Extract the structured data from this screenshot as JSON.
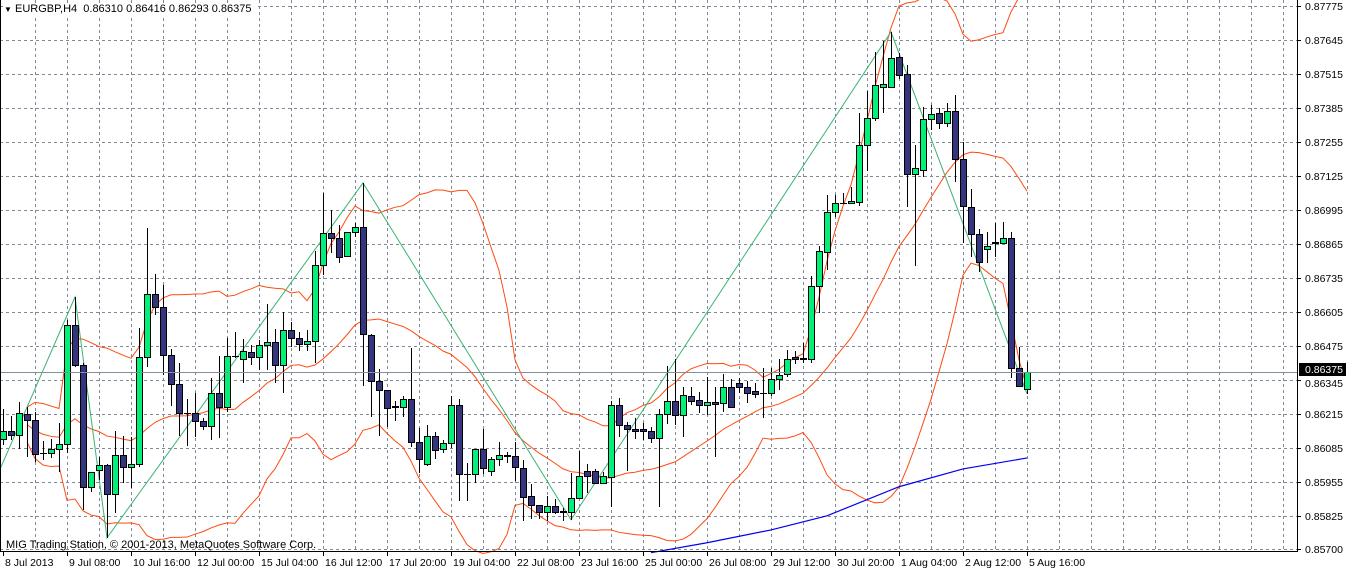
{
  "header": {
    "menu_icon": "triangle-down-icon",
    "symbol": "EURGBP,H4",
    "open": "0.86310",
    "high": "0.86416",
    "low": "0.86293",
    "close": "0.86375"
  },
  "watermark": "MIG Trading Station, © 2001-2013, MetaQuotes Software Corp.",
  "chart_data": {
    "type": "candlestick",
    "title": "EURGBP,H4",
    "ylim": [
      0.857,
      0.87775
    ],
    "grid": true,
    "current_price": "0.86375",
    "price_ticks": [
      "0.87775",
      "0.87645",
      "0.87515",
      "0.87385",
      "0.87255",
      "0.87125",
      "0.86995",
      "0.86865",
      "0.86735",
      "0.86605",
      "0.86475",
      "0.86345",
      "0.86215",
      "0.86085",
      "0.85955",
      "0.85825",
      "0.85700"
    ],
    "time_labels": [
      {
        "index": 0,
        "label": "8 Jul 2013"
      },
      {
        "index": 8,
        "label": "9 Jul 08:00"
      },
      {
        "index": 16,
        "label": "10 Jul 16:00"
      },
      {
        "index": 24,
        "label": "12 Jul 00:00"
      },
      {
        "index": 32,
        "label": "15 Jul 04:00"
      },
      {
        "index": 40,
        "label": "16 Jul 12:00"
      },
      {
        "index": 48,
        "label": "17 Jul 20:00"
      },
      {
        "index": 56,
        "label": "19 Jul 04:00"
      },
      {
        "index": 64,
        "label": "22 Jul 08:00"
      },
      {
        "index": 72,
        "label": "23 Jul 16:00"
      },
      {
        "index": 80,
        "label": "25 Jul 00:00"
      },
      {
        "index": 88,
        "label": "26 Jul 08:00"
      },
      {
        "index": 96,
        "label": "29 Jul 12:00"
      },
      {
        "index": 104,
        "label": "30 Jul 20:00"
      },
      {
        "index": 112,
        "label": "1 Aug 04:00"
      },
      {
        "index": 120,
        "label": "2 Aug 12:00"
      },
      {
        "index": 128,
        "label": "5 Aug 16:00"
      }
    ],
    "candles_format": [
      "open",
      "high",
      "low",
      "close"
    ],
    "candles": [
      [
        0.86121,
        0.86236,
        0.86098,
        0.86152
      ],
      [
        0.86152,
        0.86209,
        0.86117,
        0.86136
      ],
      [
        0.86136,
        0.86262,
        0.86083,
        0.8622
      ],
      [
        0.86217,
        0.86243,
        0.86052,
        0.86194
      ],
      [
        0.86194,
        0.86224,
        0.86033,
        0.86064
      ],
      [
        0.86068,
        0.86113,
        0.86041,
        0.86066
      ],
      [
        0.86068,
        0.86121,
        0.86048,
        0.86083
      ],
      [
        0.86083,
        0.86182,
        0.85995,
        0.86102
      ],
      [
        0.86102,
        0.86576,
        0.86068,
        0.86556
      ],
      [
        0.86556,
        0.86663,
        0.86396,
        0.86404
      ],
      [
        0.86404,
        0.86411,
        0.8585,
        0.85938
      ],
      [
        0.85938,
        0.85995,
        0.85919,
        0.85995
      ],
      [
        0.86003,
        0.86052,
        0.85964,
        0.86022
      ],
      [
        0.86022,
        0.86025,
        0.85743,
        0.85911
      ],
      [
        0.85911,
        0.86152,
        0.85838,
        0.8606
      ],
      [
        0.8606,
        0.86132,
        0.85953,
        0.86014
      ],
      [
        0.86014,
        0.86129,
        0.85934,
        0.86026
      ],
      [
        0.86026,
        0.86545,
        0.86014,
        0.86434
      ],
      [
        0.86434,
        0.86927,
        0.86396,
        0.86675
      ],
      [
        0.86675,
        0.86751,
        0.86595,
        0.86625
      ],
      [
        0.86625,
        0.86709,
        0.86365,
        0.86442
      ],
      [
        0.86442,
        0.86465,
        0.86247,
        0.86331
      ],
      [
        0.86331,
        0.86411,
        0.86132,
        0.8622
      ],
      [
        0.8622,
        0.86274,
        0.86094,
        0.86218
      ],
      [
        0.8622,
        0.86297,
        0.86129,
        0.8619
      ],
      [
        0.8619,
        0.86201,
        0.86155,
        0.86171
      ],
      [
        0.86171,
        0.86354,
        0.86117,
        0.86297
      ],
      [
        0.86297,
        0.86438,
        0.86125,
        0.86243
      ],
      [
        0.86243,
        0.86507,
        0.86224,
        0.86438
      ],
      [
        0.86438,
        0.8653,
        0.8643,
        0.86436
      ],
      [
        0.86427,
        0.86503,
        0.86335,
        0.86457
      ],
      [
        0.86453,
        0.8648,
        0.86404,
        0.86434
      ],
      [
        0.86434,
        0.86499,
        0.86385,
        0.8648
      ],
      [
        0.8648,
        0.86637,
        0.86385,
        0.86492
      ],
      [
        0.86492,
        0.86541,
        0.86335,
        0.86404
      ],
      [
        0.86404,
        0.86606,
        0.86297,
        0.86537
      ],
      [
        0.86537,
        0.86568,
        0.86472,
        0.86507
      ],
      [
        0.86507,
        0.8653,
        0.86457,
        0.86484
      ],
      [
        0.86484,
        0.86537,
        0.86457,
        0.86495
      ],
      [
        0.86495,
        0.86839,
        0.86411,
        0.86786
      ],
      [
        0.86786,
        0.87061,
        0.86747,
        0.86908
      ],
      [
        0.86908,
        0.86996,
        0.86832,
        0.86889
      ],
      [
        0.86889,
        0.86938,
        0.86793,
        0.86816
      ],
      [
        0.8682,
        0.86912,
        0.8682,
        0.86912
      ],
      [
        0.86912,
        0.86946,
        0.86893,
        0.86931
      ],
      [
        0.86931,
        0.87099,
        0.86323,
        0.86522
      ],
      [
        0.86518,
        0.86522,
        0.86205,
        0.86343
      ],
      [
        0.86343,
        0.86388,
        0.86132,
        0.86308
      ],
      [
        0.86308,
        0.86308,
        0.86167,
        0.86239
      ],
      [
        0.86243,
        0.86266,
        0.8619,
        0.86247
      ],
      [
        0.86243,
        0.86285,
        0.86205,
        0.86274
      ],
      [
        0.86274,
        0.86469,
        0.8609,
        0.8611
      ],
      [
        0.8611,
        0.86163,
        0.85991,
        0.86045
      ],
      [
        0.86026,
        0.86174,
        0.86018,
        0.86132
      ],
      [
        0.86132,
        0.86148,
        0.86045,
        0.86079
      ],
      [
        0.86083,
        0.86117,
        0.86068,
        0.86106
      ],
      [
        0.86106,
        0.86285,
        0.86087,
        0.86251
      ],
      [
        0.86251,
        0.86274,
        0.85884,
        0.85987
      ],
      [
        0.85987,
        0.86029,
        0.85884,
        0.85985
      ],
      [
        0.85987,
        0.86083,
        0.85953,
        0.86083
      ],
      [
        0.86083,
        0.86159,
        0.85987,
        0.8601
      ],
      [
        0.85999,
        0.86052,
        0.8598,
        0.86045
      ],
      [
        0.86045,
        0.8611,
        0.86018,
        0.8606
      ],
      [
        0.8606,
        0.86071,
        0.86029,
        0.86056
      ],
      [
        0.86056,
        0.8611,
        0.85961,
        0.86014
      ],
      [
        0.8601,
        0.86041,
        0.85808,
        0.85899
      ],
      [
        0.85903,
        0.85949,
        0.85815,
        0.85869
      ],
      [
        0.85869,
        0.85869,
        0.85815,
        0.85842
      ],
      [
        0.85842,
        0.85903,
        0.85808,
        0.85865
      ],
      [
        0.85865,
        0.85892,
        0.85835,
        0.85842
      ],
      [
        0.85842,
        0.85857,
        0.85808,
        0.85844
      ],
      [
        0.85842,
        0.85991,
        0.85812,
        0.85896
      ],
      [
        0.85896,
        0.86075,
        0.85896,
        0.8598
      ],
      [
        0.85999,
        0.86026,
        0.85915,
        0.8598
      ],
      [
        0.85999,
        0.86006,
        0.85953,
        0.85953
      ],
      [
        0.85953,
        0.85995,
        0.85953,
        0.8598
      ],
      [
        0.85976,
        0.86266,
        0.85861,
        0.86251
      ],
      [
        0.86251,
        0.86278,
        0.86129,
        0.86174
      ],
      [
        0.86174,
        0.86186,
        0.85999,
        0.86159
      ],
      [
        0.86159,
        0.86201,
        0.86121,
        0.86152
      ],
      [
        0.86159,
        0.86182,
        0.86117,
        0.86152
      ],
      [
        0.86152,
        0.86167,
        0.86106,
        0.86125
      ],
      [
        0.86125,
        0.86236,
        0.85861,
        0.86217
      ],
      [
        0.86217,
        0.864,
        0.86178,
        0.86266
      ],
      [
        0.86266,
        0.86427,
        0.86174,
        0.86213
      ],
      [
        0.86213,
        0.8632,
        0.86129,
        0.86289
      ],
      [
        0.86285,
        0.8632,
        0.86251,
        0.86266
      ],
      [
        0.8627,
        0.86301,
        0.8622,
        0.86251
      ],
      [
        0.86251,
        0.86358,
        0.86213,
        0.86262
      ],
      [
        0.86262,
        0.8632,
        0.86052,
        0.86255
      ],
      [
        0.86259,
        0.86369,
        0.86224,
        0.8632
      ],
      [
        0.8632,
        0.8635,
        0.86243,
        0.86243
      ],
      [
        0.86335,
        0.86354,
        0.86297,
        0.8632
      ],
      [
        0.8632,
        0.86343,
        0.86259,
        0.86297
      ],
      [
        0.86304,
        0.86335,
        0.86278,
        0.86293
      ],
      [
        0.86297,
        0.86392,
        0.86201,
        0.86295
      ],
      [
        0.86297,
        0.86392,
        0.86285,
        0.8635
      ],
      [
        0.8635,
        0.86427,
        0.86308,
        0.86365
      ],
      [
        0.86369,
        0.86461,
        0.86358,
        0.86427
      ],
      [
        0.86434,
        0.86457,
        0.86408,
        0.86427
      ],
      [
        0.86427,
        0.86488,
        0.86411,
        0.86429
      ],
      [
        0.86427,
        0.86744,
        0.86411,
        0.86705
      ],
      [
        0.86705,
        0.86858,
        0.86602,
        0.86839
      ],
      [
        0.86835,
        0.87053,
        0.86767,
        0.86988
      ],
      [
        0.86988,
        0.87053,
        0.86969,
        0.87023
      ],
      [
        0.87023,
        0.87061,
        0.87023,
        0.87021
      ],
      [
        0.87023,
        0.87084,
        0.87023,
        0.8703
      ],
      [
        0.87026,
        0.87366,
        0.87011,
        0.87244
      ],
      [
        0.87244,
        0.8745,
        0.87145,
        0.87347
      ],
      [
        0.87347,
        0.87599,
        0.87336,
        0.87473
      ],
      [
        0.87466,
        0.87641,
        0.87366,
        0.87477
      ],
      [
        0.87466,
        0.87676,
        0.87462,
        0.87576
      ],
      [
        0.8758,
        0.87596,
        0.87496,
        0.87511
      ],
      [
        0.87515,
        0.8755,
        0.87007,
        0.87133
      ],
      [
        0.87133,
        0.87244,
        0.86782,
        0.87156
      ],
      [
        0.87149,
        0.87389,
        0.87122,
        0.87343
      ],
      [
        0.87343,
        0.87397,
        0.87301,
        0.87363
      ],
      [
        0.87366,
        0.87385,
        0.87305,
        0.87328
      ],
      [
        0.87328,
        0.87405,
        0.87313,
        0.87374
      ],
      [
        0.87374,
        0.87435,
        0.87103,
        0.87191
      ],
      [
        0.87191,
        0.87256,
        0.8687,
        0.87011
      ],
      [
        0.87007,
        0.87076,
        0.86816,
        0.86904
      ],
      [
        0.86904,
        0.86923,
        0.86759,
        0.86797
      ],
      [
        0.86847,
        0.86912,
        0.86793,
        0.86858
      ],
      [
        0.8687,
        0.86946,
        0.86816,
        0.86872
      ],
      [
        0.8687,
        0.8695,
        0.86866,
        0.86889
      ],
      [
        0.86889,
        0.86912,
        0.86354,
        0.86392
      ],
      [
        0.86392,
        0.86472,
        0.8632,
        0.86323
      ],
      [
        0.8631,
        0.86416,
        0.86293,
        0.86375
      ]
    ],
    "indicators": {
      "moving_average_blue": [
        [
          81,
          0.85686
        ],
        [
          88,
          0.85724
        ],
        [
          96,
          0.85773
        ],
        [
          103,
          0.85827
        ],
        [
          112,
          0.85938
        ],
        [
          120,
          0.86006
        ],
        [
          128,
          0.86048
        ]
      ],
      "zigzag": [
        [
          -0.4,
          0.86003
        ],
        [
          9,
          0.86663
        ],
        [
          13,
          0.85743
        ],
        [
          45,
          0.87099
        ],
        [
          71,
          0.85812
        ],
        [
          111,
          0.87676
        ],
        [
          128,
          0.86293
        ]
      ]
    },
    "colors": {
      "bull": "#00F07A",
      "bear": "#35357F",
      "bollinger": "#FF4A10",
      "moving_average": "#0000F0",
      "zigzag": "#3CB371",
      "grid": "#7F8A99",
      "bid_line": "#8090A0"
    }
  }
}
